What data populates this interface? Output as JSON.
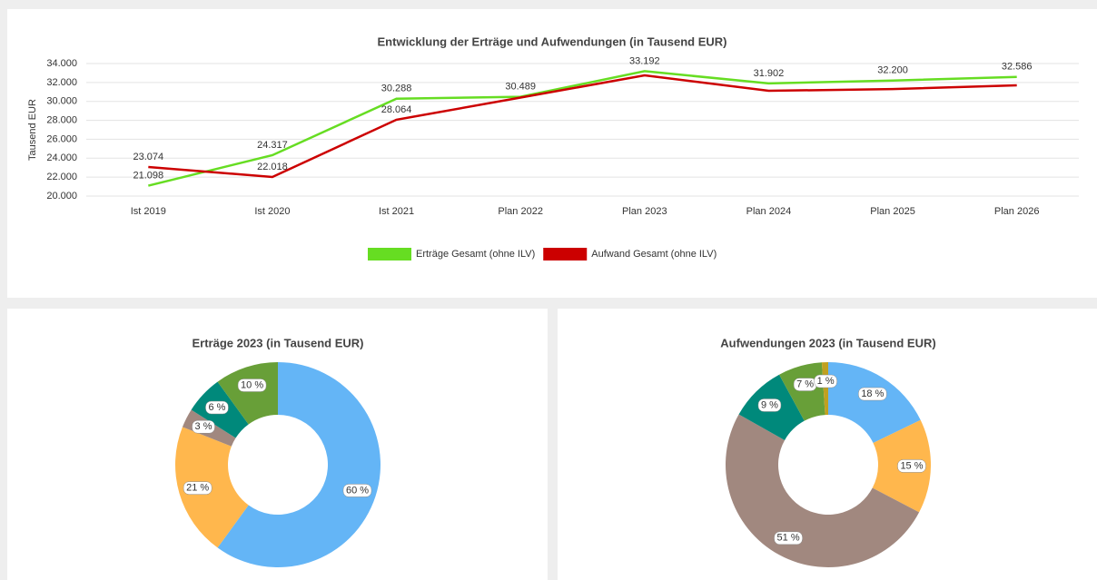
{
  "chart_data": [
    {
      "type": "line",
      "title": "Entwicklung der Erträge und Aufwendungen  (in Tausend EUR)",
      "y_label": "Tausend EUR",
      "categories": [
        "Ist 2019",
        "Ist 2020",
        "Ist 2021",
        "Plan 2022",
        "Plan 2023",
        "Plan 2024",
        "Plan 2025",
        "Plan 2026"
      ],
      "ylim": [
        20000,
        34000
      ],
      "yticks": [
        {
          "value": 20000,
          "label": "20.000"
        },
        {
          "value": 22000,
          "label": "22.000"
        },
        {
          "value": 24000,
          "label": "24.000"
        },
        {
          "value": 26000,
          "label": "26.000"
        },
        {
          "value": 28000,
          "label": "28.000"
        },
        {
          "value": 30000,
          "label": "30.000"
        },
        {
          "value": 32000,
          "label": "32.000"
        },
        {
          "value": 34000,
          "label": "34.000"
        }
      ],
      "grid": true,
      "legend": "bottom",
      "series": [
        {
          "name": "Erträge Gesamt (ohne ILV)",
          "color": "#66dd22",
          "values": [
            21098,
            24317,
            30288,
            30489,
            33192,
            31902,
            32200,
            32586
          ],
          "value_labels": [
            "21.098",
            "24.317",
            "30.288",
            "30.489",
            "33.192",
            "31.902",
            "32.200",
            "32.586"
          ]
        },
        {
          "name": "Aufwand Gesamt (ohne ILV)",
          "color": "#cc0000",
          "values": [
            23074,
            22018,
            28064,
            30400,
            32750,
            31120,
            31300,
            31700
          ],
          "value_labels": [
            "23.074",
            "22.018",
            "28.064",
            null,
            null,
            null,
            null,
            null
          ]
        }
      ]
    },
    {
      "type": "pie",
      "title": "Erträge 2023  (in Tausend EUR)",
      "values": [
        60,
        21,
        3,
        6,
        10
      ],
      "value_labels": [
        "60 %",
        "21 %",
        "3 %",
        "6 %",
        "10 %"
      ],
      "colors": [
        "#64b5f6",
        "#ffb74d",
        "#a1887f",
        "#00897b",
        "#689f38"
      ]
    },
    {
      "type": "pie",
      "title": "Aufwendungen 2023  (in Tausend EUR)",
      "values": [
        18,
        15,
        51,
        9,
        7,
        1
      ],
      "value_labels": [
        "18 %",
        "15 %",
        "51 %",
        "9 %",
        "7 %",
        "1 %"
      ],
      "colors": [
        "#64b5f6",
        "#ffb74d",
        "#a1887f",
        "#00897b",
        "#689f38",
        "#c0a020"
      ]
    }
  ]
}
